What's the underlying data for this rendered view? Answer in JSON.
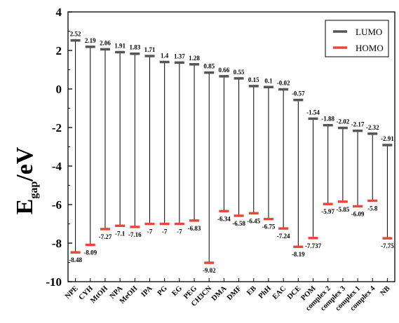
{
  "chart_data": {
    "type": "floating-bar",
    "categories": [
      "NPE",
      "CYH",
      "MtOH",
      "NPA",
      "MeOH",
      "IPA",
      "PG",
      "EG",
      "PEG",
      "CH3CN",
      "DMA",
      "DMF",
      "EB",
      "PhH",
      "EAC",
      "DCE",
      "POM",
      "complex 2",
      "complex 3",
      "complex 1",
      "complex 4",
      "NB"
    ],
    "series": [
      {
        "name": "LUMO",
        "color": "#555555",
        "values": [
          2.52,
          2.19,
          2.06,
          1.91,
          1.83,
          1.71,
          1.4,
          1.37,
          1.28,
          0.85,
          0.66,
          0.55,
          0.15,
          0.1,
          -0.02,
          -0.57,
          -1.54,
          -1.88,
          -2.02,
          -2.17,
          -2.32,
          -2.91
        ],
        "labels": [
          "2.52",
          "2.19",
          "2.06",
          "1.91",
          "1.83",
          "1.71",
          "1.4",
          "1.37",
          "1.28",
          "0.85",
          "0.66",
          "0.55",
          "0.15",
          "0.1",
          "-0.02",
          "-0.57",
          "-1.54",
          "-1.88",
          "-2.02",
          "-2.17",
          "-2.32",
          "-2.91"
        ]
      },
      {
        "name": "HOMO",
        "color": "#e8473a",
        "values": [
          -8.48,
          -8.09,
          -7.27,
          -7.1,
          -7.16,
          -7,
          -7,
          -7,
          -6.83,
          -9.02,
          -6.34,
          -6.58,
          -6.45,
          -6.75,
          -7.24,
          -8.19,
          -7.737,
          -5.97,
          -5.85,
          -6.09,
          -5.8,
          -7.75
        ],
        "labels": [
          "-8.48",
          "-8.09",
          "-7.27",
          "-7.1",
          "-7.16",
          "-7",
          "-7",
          "-7",
          "-6.83",
          "-9.02",
          "-6.34",
          "-6.58",
          "-6.45",
          "-6.75",
          "-7.24",
          "-8.19",
          "-7.737",
          "-5.97",
          "-5.85",
          "-6.09",
          "-5.8",
          "-7.75"
        ]
      }
    ],
    "ylabel_main": "E",
    "ylabel_sub": "gap",
    "ylabel_unit": "/eV",
    "ylim": [
      -10,
      4
    ],
    "yticks": [
      "4",
      "2",
      "0",
      "-2",
      "-4",
      "-6",
      "-8",
      "-10"
    ],
    "legend_position": "top-right",
    "grid": false
  }
}
